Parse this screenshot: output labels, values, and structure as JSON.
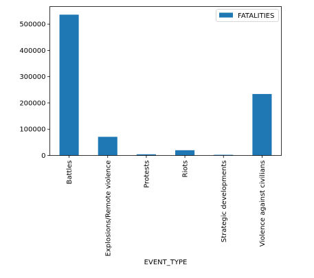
{
  "chart_data": {
    "type": "bar",
    "categories": [
      "Battles",
      "Explosions/Remote violence",
      "Protests",
      "Riots",
      "Strategic developments",
      "Violence against civilians"
    ],
    "series": [
      {
        "name": "FATALITIES",
        "values": [
          536000,
          71000,
          4500,
          20000,
          2500,
          234000
        ],
        "color": "#1f77b4"
      }
    ],
    "xlabel": "EVENT_TYPE",
    "ylabel": "",
    "ylim": [
      0,
      567000
    ],
    "yticks": [
      0,
      100000,
      200000,
      300000,
      400000,
      500000
    ],
    "ytick_labels": [
      "0",
      "100000",
      "200000",
      "300000",
      "400000",
      "500000"
    ],
    "legend": {
      "position": "top-right",
      "label": "FATALITIES"
    },
    "grid": false
  }
}
